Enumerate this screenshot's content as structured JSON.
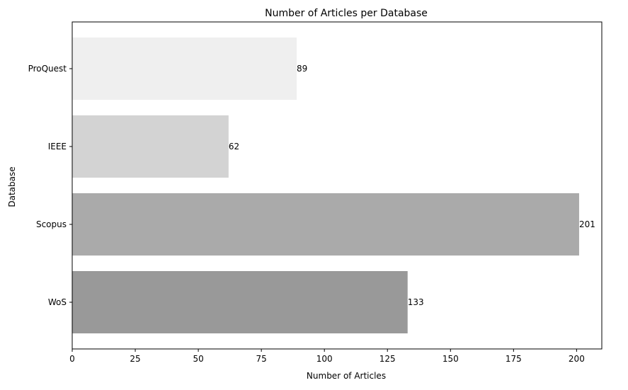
{
  "chart_data": {
    "type": "bar",
    "orientation": "horizontal",
    "title": "Number of Articles per Database",
    "xlabel": "Number of Articles",
    "ylabel": "Database",
    "categories": [
      "WoS",
      "Scopus",
      "IEEE",
      "ProQuest"
    ],
    "values": [
      133,
      201,
      62,
      89
    ],
    "bar_colors": [
      "#999999",
      "#aaaaaa",
      "#d3d3d3",
      "#efefef"
    ],
    "data_labels": [
      "133",
      "201",
      "62",
      "89"
    ],
    "xlim": [
      0,
      210
    ],
    "xticks": [
      0,
      25,
      50,
      75,
      100,
      125,
      150,
      175,
      200
    ],
    "xtick_labels": [
      "0",
      "25",
      "50",
      "75",
      "100",
      "125",
      "150",
      "175",
      "200"
    ],
    "grid": false,
    "legend": "none"
  }
}
